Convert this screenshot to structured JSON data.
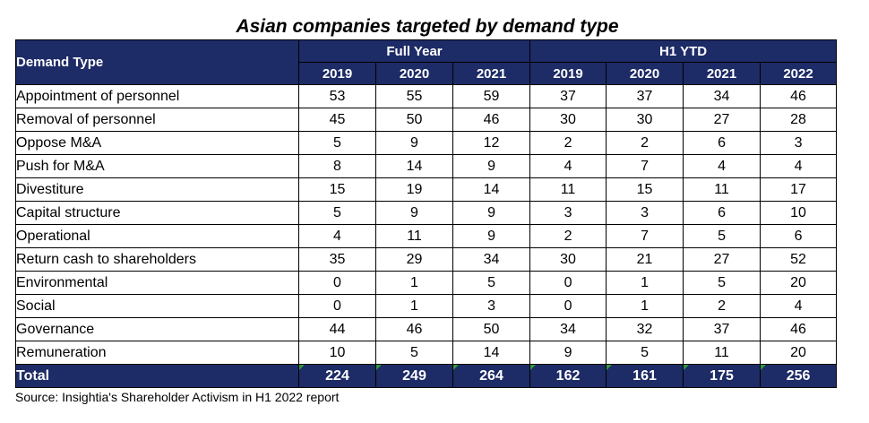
{
  "title": "Asian companies targeted by demand type",
  "source": "Source: Insightia's Shareholder Activism in H1 2022 report",
  "chart_data": {
    "type": "table",
    "title": "Asian companies targeted by demand type",
    "row_header": "Demand Type",
    "column_groups": [
      {
        "name": "Full Year",
        "years": [
          "2019",
          "2020",
          "2021"
        ]
      },
      {
        "name": "H1 YTD",
        "years": [
          "2019",
          "2020",
          "2021",
          "2022"
        ]
      }
    ],
    "rows": [
      {
        "label": "Appointment of personnel",
        "values": [
          53,
          55,
          59,
          37,
          37,
          34,
          46
        ]
      },
      {
        "label": "Removal of personnel",
        "values": [
          45,
          50,
          46,
          30,
          30,
          27,
          28
        ]
      },
      {
        "label": "Oppose M&A",
        "values": [
          5,
          9,
          12,
          2,
          2,
          6,
          3
        ]
      },
      {
        "label": "Push for M&A",
        "values": [
          8,
          14,
          9,
          4,
          7,
          4,
          4
        ]
      },
      {
        "label": "Divestiture",
        "values": [
          15,
          19,
          14,
          11,
          15,
          11,
          17
        ]
      },
      {
        "label": "Capital structure",
        "values": [
          5,
          9,
          9,
          3,
          3,
          6,
          10
        ]
      },
      {
        "label": "Operational",
        "values": [
          4,
          11,
          9,
          2,
          7,
          5,
          6
        ]
      },
      {
        "label": "Return cash to shareholders",
        "values": [
          35,
          29,
          34,
          30,
          21,
          27,
          52
        ]
      },
      {
        "label": "Environmental",
        "values": [
          0,
          1,
          5,
          0,
          1,
          5,
          20
        ]
      },
      {
        "label": "Social",
        "values": [
          0,
          1,
          3,
          0,
          1,
          2,
          4
        ]
      },
      {
        "label": "Governance",
        "values": [
          44,
          46,
          50,
          34,
          32,
          37,
          46
        ]
      },
      {
        "label": "Remuneration",
        "values": [
          10,
          5,
          14,
          9,
          5,
          11,
          20
        ]
      }
    ],
    "total": {
      "label": "Total",
      "values": [
        224,
        249,
        264,
        162,
        161,
        175,
        256
      ]
    }
  },
  "colors": {
    "header_bg": "#1d2b66",
    "header_text": "#ffffff",
    "error_marker": "#2f9a3c"
  }
}
